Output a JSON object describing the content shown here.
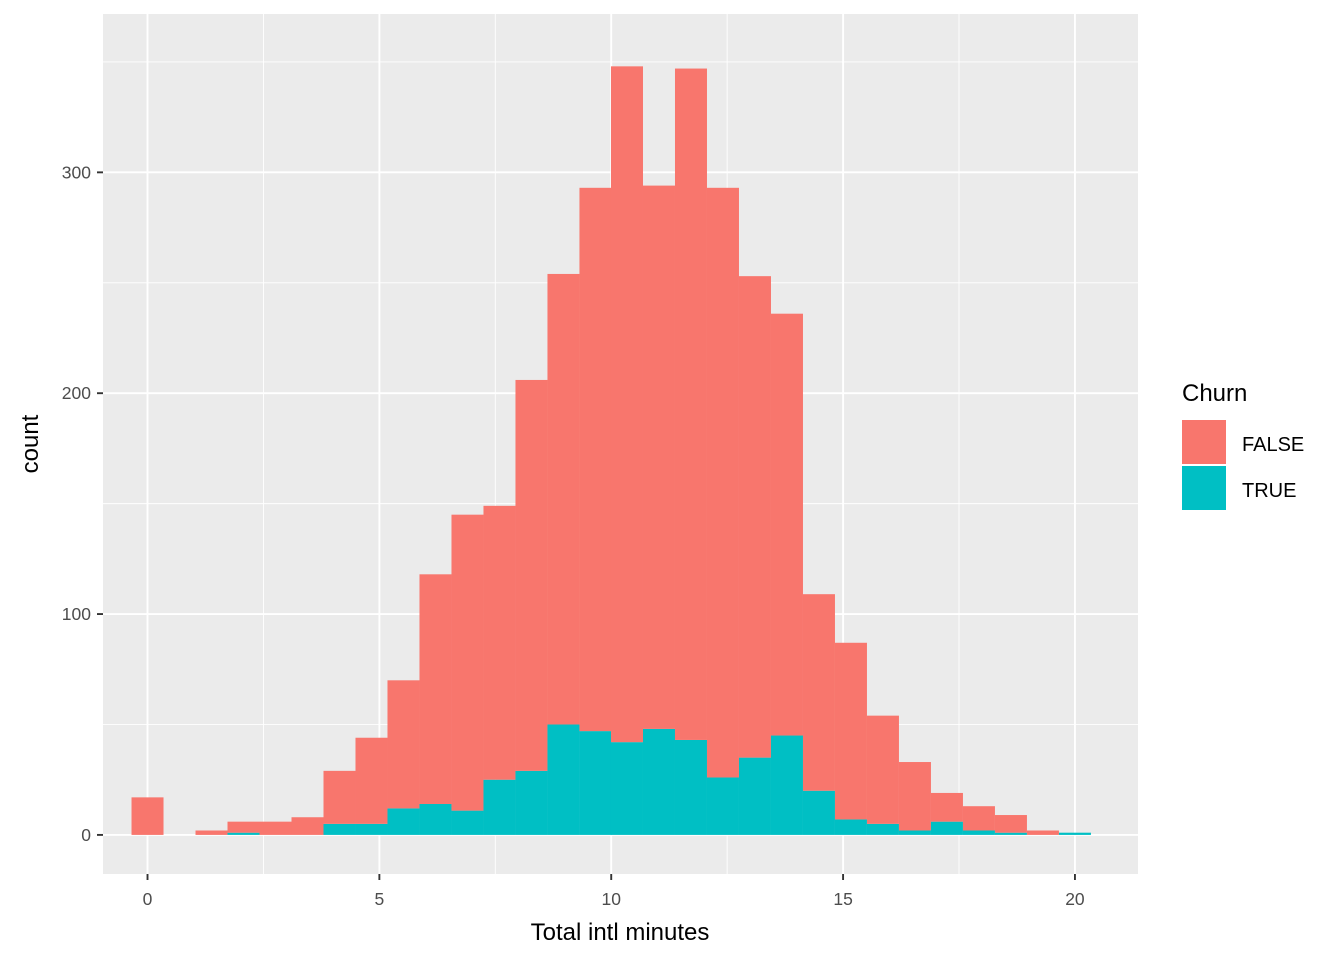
{
  "chart_data": {
    "type": "bar",
    "subtype": "stacked-histogram",
    "title": "",
    "xlabel": "Total intl minutes",
    "ylabel": "count",
    "xlim": [
      -0.96,
      21.36
    ],
    "ylim": [
      -17.7,
      371.7
    ],
    "xticks": [
      0,
      5,
      10,
      15,
      20
    ],
    "yticks": [
      0,
      100,
      200,
      300
    ],
    "bin_width": 0.69,
    "bin_centers": [
      0.0,
      0.69,
      1.38,
      2.07,
      2.76,
      3.45,
      4.14,
      4.83,
      5.52,
      6.21,
      6.9,
      7.59,
      8.28,
      8.97,
      9.66,
      10.34,
      11.03,
      11.72,
      12.41,
      13.1,
      13.79,
      14.48,
      15.17,
      15.86,
      16.55,
      17.24,
      17.93,
      18.62,
      19.31,
      20.0
    ],
    "series": [
      {
        "name": "FALSE",
        "color": "#F8766D",
        "values": [
          17,
          0,
          2,
          5,
          6,
          8,
          24,
          39,
          58,
          104,
          134,
          124,
          177,
          204,
          246,
          306,
          246,
          304,
          267,
          218,
          191,
          89,
          80,
          49,
          31,
          13,
          11,
          8,
          2,
          0
        ]
      },
      {
        "name": "TRUE",
        "color": "#00BFC4",
        "values": [
          0,
          0,
          0,
          1,
          0,
          0,
          5,
          5,
          12,
          14,
          11,
          25,
          29,
          50,
          47,
          42,
          48,
          43,
          26,
          35,
          45,
          20,
          7,
          5,
          2,
          6,
          2,
          1,
          0,
          1
        ]
      }
    ],
    "legend": {
      "title": "Churn",
      "placement": "right",
      "entries": [
        "FALSE",
        "TRUE"
      ]
    },
    "grid": true,
    "panel_background": "#EBEBEB",
    "grid_color": "#FFFFFF"
  }
}
